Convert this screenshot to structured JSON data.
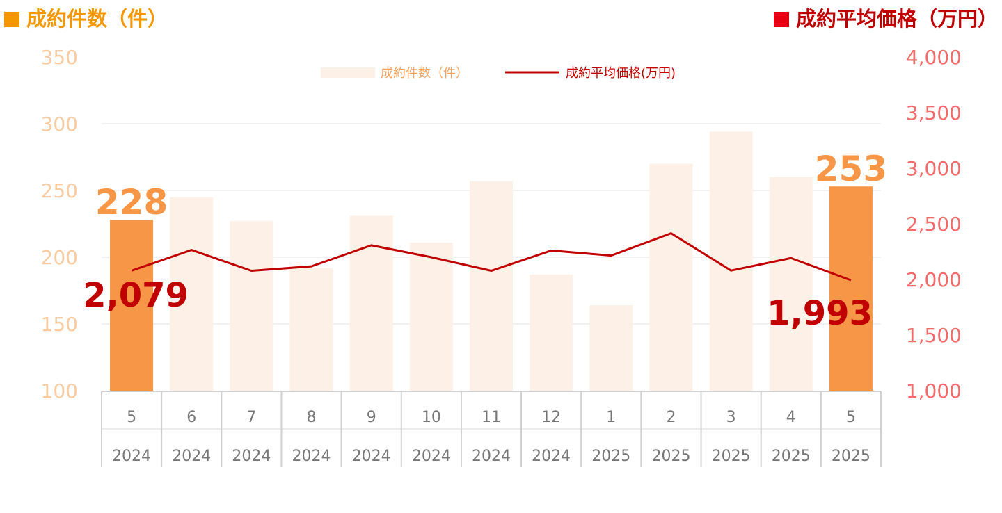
{
  "header": {
    "left_title": "成約件数（件）",
    "right_title": "成約平均価格（万円）"
  },
  "colors": {
    "bar_highlight": "#F79646",
    "bar_muted": "#FDF1E7",
    "line": "#C00000",
    "left_axis_text": "#F8CBA0",
    "right_axis_text": "#F26B6B",
    "header_left": "#F39800",
    "header_right": "#C00000",
    "grid": "#E3E3E3"
  },
  "chart_data": {
    "type": "bar",
    "categories": [
      "5",
      "6",
      "7",
      "8",
      "9",
      "10",
      "11",
      "12",
      "1",
      "2",
      "3",
      "4",
      "5"
    ],
    "years": [
      "2024",
      "2024",
      "2024",
      "2024",
      "2024",
      "2024",
      "2024",
      "2024",
      "2025",
      "2025",
      "2025",
      "2025",
      "2025"
    ],
    "series": [
      {
        "name": "成約件数（件）",
        "type": "bar",
        "axis": "left",
        "values": [
          228,
          245,
          227,
          192,
          231,
          211,
          257,
          187,
          164,
          270,
          294,
          260,
          253
        ],
        "highlight": [
          true,
          false,
          false,
          false,
          false,
          false,
          false,
          false,
          false,
          false,
          false,
          false,
          true
        ]
      },
      {
        "name": "成約平均価格(万円)",
        "type": "line",
        "axis": "right",
        "values": [
          2079,
          2265,
          2078,
          2118,
          2307,
          2200,
          2078,
          2260,
          2215,
          2415,
          2080,
          2192,
          1993
        ]
      }
    ],
    "y_left": {
      "min": 100,
      "max": 350,
      "ticks": [
        "100",
        "150",
        "200",
        "250",
        "300",
        "350"
      ]
    },
    "y_right": {
      "min": 1000,
      "max": 4000,
      "ticks": [
        "1,000",
        "1,500",
        "2,000",
        "2,500",
        "3,000",
        "3,500",
        "4,000"
      ]
    },
    "legend_position": "top-center",
    "annotations": [
      {
        "text": "228",
        "series": "bar",
        "index": 0,
        "color": "#F79646"
      },
      {
        "text": "253",
        "series": "bar",
        "index": 12,
        "color": "#F79646"
      },
      {
        "text": "2,079",
        "series": "line",
        "index": 0,
        "color": "#C00000"
      },
      {
        "text": "1,993",
        "series": "line",
        "index": 12,
        "color": "#C00000"
      }
    ]
  }
}
